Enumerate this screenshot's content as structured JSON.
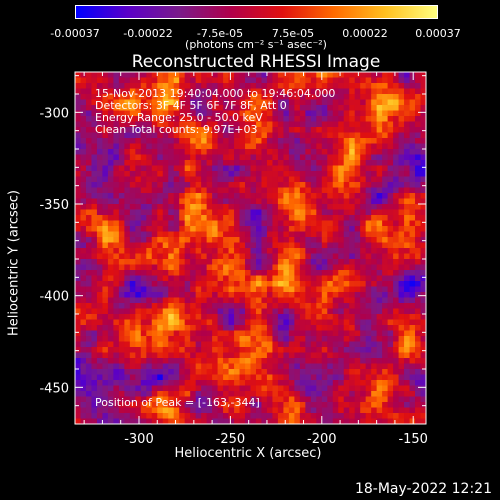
{
  "colorbar": {
    "ticks": [
      "-0.00037",
      "-0.00022",
      "-7.5e-05",
      "7.5e-05",
      "0.00022",
      "0.00037"
    ],
    "unit_label": "(photons cm⁻² s⁻¹ asec⁻²)",
    "range": [
      -0.00037,
      0.00037
    ],
    "colormap": [
      "#0000ff",
      "#5a00c8",
      "#7a1a8a",
      "#b0004a",
      "#e01010",
      "#ff6a00",
      "#ffc020",
      "#ffff80"
    ]
  },
  "plot": {
    "title": "Reconstructed RHESSI Image",
    "info_lines": [
      "15-Nov-2013 19:40:04.000 to 19:46:04.000",
      "Detectors: 3F 4F 5F 6F 7F 8F, Att 0",
      "Energy Range: 25.0 - 50.0 keV",
      "Clean     Total counts: 9.97E+03"
    ],
    "peak_label": "Position of Peak = [-163,-344]",
    "xlabel": "Heliocentric X (arcsec)",
    "ylabel": "Heliocentric Y (arcsec)",
    "xlim": [
      -335,
      -143
    ],
    "ylim": [
      -470,
      -278
    ],
    "xticks": [
      "-300",
      "-250",
      "-200",
      "-150"
    ],
    "yticks": [
      "-300",
      "-350",
      "-400",
      "-450"
    ],
    "background_color": "#000000",
    "frame_color": "#ffffff"
  },
  "timestamp": "18-May-2022 12:21"
}
